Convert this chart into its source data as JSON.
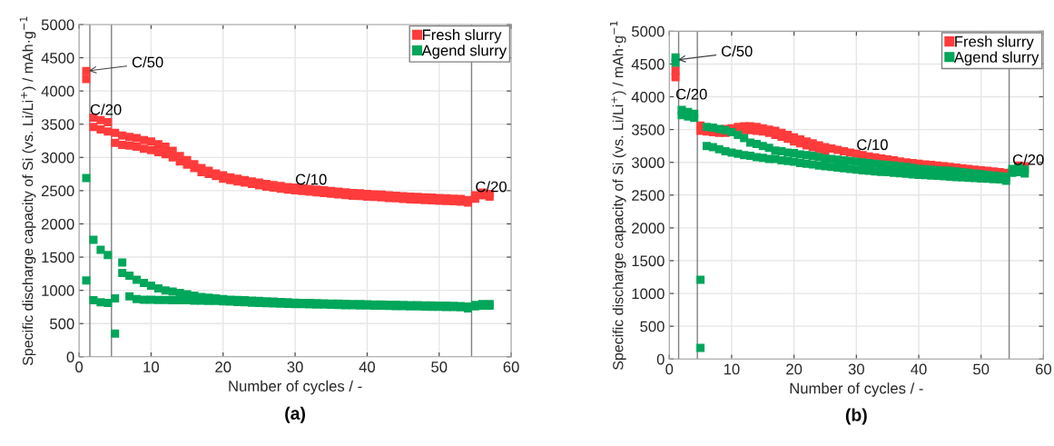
{
  "chart_data": [
    {
      "type": "scatter",
      "xlabel": "Number of cycles / -",
      "ylabel": "Specific discharge capacity of Si (vs. Li/Li$^{+}$) / mAh·g$^{−1}$",
      "xlim": [
        0,
        60
      ],
      "ylim": [
        0,
        5000
      ],
      "xticks": [
        0,
        10,
        20,
        30,
        40,
        50,
        60
      ],
      "yticks": [
        0,
        500,
        1000,
        1500,
        2000,
        2500,
        3000,
        3500,
        4000,
        4500,
        5000
      ],
      "grid": true,
      "legend": "top right",
      "marker": "square",
      "series": [
        {
          "name": "Fresh slurry",
          "color": "#ff3b3b",
          "x": [
            1,
            2,
            3,
            4,
            5,
            6,
            7,
            8,
            9,
            10,
            11,
            12,
            13,
            14,
            15,
            16,
            17,
            18,
            19,
            20,
            21,
            22,
            23,
            24,
            25,
            26,
            27,
            28,
            29,
            30,
            31,
            32,
            33,
            34,
            35,
            36,
            37,
            38,
            39,
            40,
            41,
            42,
            43,
            44,
            45,
            46,
            47,
            48,
            49,
            50,
            51,
            52,
            53,
            54,
            55,
            56,
            57,
            1,
            2,
            3,
            4,
            5,
            6,
            7,
            8,
            9,
            10,
            11,
            12,
            13,
            14,
            15,
            16,
            17,
            18,
            19,
            20,
            21,
            22,
            23,
            24,
            25,
            26,
            27,
            28,
            29,
            30,
            31,
            32,
            33,
            34,
            35,
            36,
            37,
            38,
            39,
            40,
            41,
            42,
            43,
            44,
            45,
            46,
            47,
            48,
            49,
            50,
            51,
            52,
            53,
            54,
            55,
            56,
            57
          ],
          "values": [
            4300,
            3600,
            3560,
            3530,
            3370,
            3330,
            3310,
            3290,
            3260,
            3240,
            3200,
            3160,
            3100,
            3020,
            2960,
            2900,
            2840,
            2800,
            2760,
            2730,
            2700,
            2680,
            2660,
            2640,
            2620,
            2600,
            2585,
            2570,
            2555,
            2545,
            2535,
            2525,
            2515,
            2505,
            2495,
            2485,
            2475,
            2465,
            2460,
            2450,
            2445,
            2440,
            2430,
            2425,
            2415,
            2410,
            2405,
            2400,
            2395,
            2390,
            2385,
            2380,
            2375,
            2360,
            2430,
            2470,
            2450,
            4180,
            3460,
            3420,
            3390,
            3220,
            3190,
            3180,
            3160,
            3130,
            3110,
            3080,
            3050,
            3000,
            2940,
            2890,
            2840,
            2780,
            2750,
            2720,
            2680,
            2660,
            2640,
            2620,
            2600,
            2580,
            2560,
            2545,
            2530,
            2515,
            2505,
            2495,
            2485,
            2475,
            2465,
            2455,
            2445,
            2435,
            2425,
            2420,
            2410,
            2405,
            2400,
            2390,
            2385,
            2375,
            2370,
            2365,
            2360,
            2355,
            2350,
            2345,
            2340,
            2335,
            2320,
            2380,
            2430,
            2410
          ]
        },
        {
          "name": "Agend slurry",
          "color": "#00a65a",
          "x": [
            1,
            2,
            3,
            4,
            5,
            6,
            7,
            8,
            9,
            10,
            11,
            12,
            13,
            14,
            15,
            16,
            17,
            18,
            19,
            20,
            21,
            22,
            23,
            24,
            25,
            26,
            27,
            28,
            29,
            30,
            31,
            32,
            33,
            34,
            35,
            36,
            37,
            38,
            39,
            40,
            41,
            42,
            43,
            44,
            45,
            46,
            47,
            48,
            49,
            50,
            51,
            52,
            53,
            54,
            55,
            56,
            57,
            1,
            2,
            3,
            4,
            5,
            6,
            7,
            8,
            9,
            10,
            11,
            12,
            13,
            14,
            15,
            16,
            17,
            18,
            19,
            20,
            21,
            22,
            23,
            24,
            25,
            26,
            27,
            28,
            29,
            30,
            31,
            32,
            33,
            34,
            35,
            36,
            37,
            38,
            39,
            40,
            41,
            42,
            43,
            44,
            45,
            46,
            47,
            48,
            49,
            50,
            51,
            52,
            53,
            54,
            55,
            56,
            57
          ],
          "values": [
            2690,
            1760,
            1610,
            1530,
            880,
            1420,
            1220,
            1160,
            1110,
            1070,
            1030,
            1000,
            980,
            960,
            940,
            920,
            900,
            890,
            880,
            870,
            860,
            855,
            850,
            845,
            840,
            835,
            830,
            825,
            820,
            815,
            812,
            810,
            808,
            805,
            802,
            800,
            798,
            795,
            792,
            790,
            788,
            786,
            784,
            782,
            780,
            778,
            776,
            774,
            772,
            770,
            768,
            766,
            764,
            755,
            780,
            795,
            795,
            1150,
            850,
            820,
            810,
            350,
            1260,
            910,
            870,
            860,
            860,
            855,
            855,
            850,
            850,
            850,
            845,
            845,
            840,
            840,
            835,
            830,
            825,
            820,
            815,
            810,
            808,
            805,
            802,
            798,
            795,
            792,
            790,
            788,
            785,
            782,
            780,
            778,
            776,
            774,
            772,
            770,
            768,
            766,
            764,
            762,
            760,
            758,
            756,
            754,
            752,
            750,
            748,
            746,
            730,
            760,
            770,
            770
          ]
        }
      ],
      "ref_lines": [
        {
          "axis": "x",
          "value": 1.5,
          "color": "#808080"
        },
        {
          "axis": "x",
          "value": 4.5,
          "color": "#808080"
        },
        {
          "axis": "x",
          "value": 54.5,
          "color": "#808080"
        }
      ],
      "annotations": [
        {
          "text": "C/50",
          "x": 1,
          "y": 4300
        },
        {
          "text": "C/20",
          "x": 1.5,
          "y": 3700
        },
        {
          "text": "C/10",
          "x": 30,
          "y": 2650
        },
        {
          "text": "C/20",
          "x": 55,
          "y": 2540
        },
        "(a)"
      ]
    },
    {
      "type": "scatter",
      "xlabel": "Number of cycles / -",
      "ylabel": "Specific discharge capacity of Si (vs. Li/Li$^{+}$) / mAh·g$^{−1}$",
      "xlim": [
        0,
        60
      ],
      "ylim": [
        0,
        5000
      ],
      "xticks": [
        0,
        10,
        20,
        30,
        40,
        50,
        60
      ],
      "yticks": [
        0,
        500,
        1000,
        1500,
        2000,
        2500,
        3000,
        3500,
        4000,
        4500,
        5000
      ],
      "grid": true,
      "legend": "top right",
      "marker": "square",
      "series": [
        {
          "name": "Fresh slurry",
          "color": "#ff3b3b",
          "x": [
            1,
            5,
            6,
            7,
            8,
            9,
            10,
            11,
            12,
            13,
            14,
            15,
            16,
            17,
            18,
            19,
            20,
            21,
            22,
            23,
            24,
            25,
            26,
            27,
            28,
            29,
            30,
            31,
            32,
            33,
            34,
            35,
            36,
            37,
            38,
            39,
            40,
            41,
            42,
            43,
            44,
            45,
            46,
            47,
            48,
            49,
            50,
            51,
            52,
            53,
            54,
            55,
            56,
            57,
            1,
            5,
            6,
            7,
            8,
            9,
            10,
            11,
            12,
            13,
            14,
            15,
            16,
            17,
            18,
            19,
            20,
            21,
            22,
            23,
            24,
            25
          ],
          "values": [
            4400,
            3560,
            null,
            null,
            null,
            3510,
            3520,
            3540,
            3550,
            3550,
            3540,
            3520,
            3500,
            3480,
            3450,
            3420,
            3380,
            3350,
            3320,
            3290,
            3260,
            3230,
            3210,
            3190,
            3170,
            3150,
            3130,
            3110,
            3090,
            3075,
            3060,
            3045,
            3030,
            3015,
            3000,
            2990,
            2980,
            2970,
            2960,
            2950,
            2940,
            2930,
            2920,
            2910,
            2900,
            2890,
            2880,
            2870,
            2860,
            2850,
            2840,
            null,
            2950,
            2940,
            4300,
            3480,
            3470,
            3460,
            3450,
            3450,
            null,
            null,
            3490,
            3490,
            3480,
            3470,
            3450,
            3420,
            3390,
            3360,
            3320,
            3290,
            3260,
            3230,
            3200,
            3170
          ]
        },
        {
          "name": "Agend slurry",
          "color": "#00a65a",
          "x": [
            1,
            2,
            3,
            4,
            5,
            6,
            7,
            8,
            9,
            10,
            11,
            12,
            13,
            14,
            15,
            16,
            17,
            18,
            19,
            20,
            21,
            22,
            23,
            24,
            25,
            26,
            27,
            28,
            29,
            30,
            31,
            32,
            33,
            34,
            35,
            36,
            37,
            38,
            39,
            40,
            41,
            42,
            43,
            44,
            45,
            46,
            47,
            48,
            49,
            50,
            51,
            52,
            53,
            54,
            55,
            56,
            57,
            1,
            2,
            3,
            4,
            5,
            6,
            7,
            8,
            9,
            10,
            11,
            12,
            13,
            14,
            15,
            16,
            17,
            18,
            19,
            20,
            21,
            22,
            23,
            24,
            25,
            26,
            27,
            28,
            29,
            30,
            31,
            32,
            33,
            34,
            35,
            36,
            37,
            38,
            39,
            40,
            41,
            42,
            43,
            44,
            45,
            46,
            47,
            48,
            49,
            50,
            51,
            52,
            53,
            54,
            55,
            56,
            57
          ],
          "values": [
            4600,
            3800,
            3770,
            3740,
            1210,
            3540,
            3530,
            3510,
            3490,
            3460,
            3420,
            3370,
            3300,
            3280,
            3250,
            3220,
            3180,
            3170,
            3150,
            3140,
            3120,
            3110,
            3100,
            3080,
            3060,
            3050,
            3040,
            3030,
            3020,
            3010,
            3000,
            2990,
            2980,
            2970,
            2960,
            2950,
            2940,
            2930,
            2915,
            2900,
            2895,
            2890,
            2880,
            2875,
            2870,
            2860,
            2850,
            2840,
            2830,
            2820,
            2810,
            2800,
            2790,
            2780,
            2900,
            2920,
            2890,
            4520,
            3720,
            3700,
            3680,
            170,
            3250,
            3230,
            3200,
            3170,
            3150,
            3130,
            3110,
            3100,
            3080,
            3070,
            3050,
            3050,
            3030,
            3020,
            3010,
            2990,
            2980,
            2970,
            2950,
            2940,
            2930,
            2920,
            2910,
            2900,
            2890,
            2880,
            2870,
            2860,
            2855,
            2850,
            2840,
            2835,
            2825,
            2815,
            2810,
            2805,
            2800,
            2795,
            2790,
            2780,
            2775,
            2770,
            2765,
            2760,
            2755,
            2750,
            2745,
            2740,
            2720,
            2840,
            2850,
            2830
          ]
        }
      ],
      "ref_lines": [
        {
          "axis": "x",
          "value": 1.5,
          "color": "#808080"
        },
        {
          "axis": "x",
          "value": 4.5,
          "color": "#808080"
        },
        {
          "axis": "x",
          "value": 54.5,
          "color": "#808080"
        }
      ],
      "annotations": [
        {
          "text": "C/50",
          "x": 1,
          "y": 4560
        },
        {
          "text": "C/20",
          "x": 1.0,
          "y": 4020
        },
        {
          "text": "C/10",
          "x": 30,
          "y": 3250
        },
        {
          "text": "C/20",
          "x": 55,
          "y": 3020
        },
        "(b)"
      ]
    }
  ]
}
